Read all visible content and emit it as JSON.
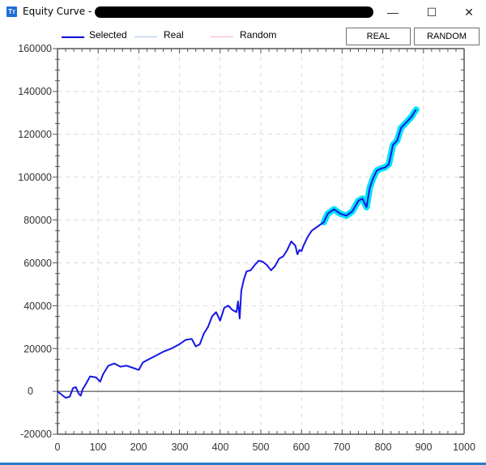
{
  "window": {
    "title": "Equity Curve - ",
    "title_redacted": true,
    "controls": {
      "minimize": "—",
      "maximize": "☐",
      "close": "✕"
    },
    "app_icon": "Tт"
  },
  "legend": [
    {
      "label": "Selected",
      "color": "#0000dd"
    },
    {
      "label": "Real",
      "color": "#a8c4f0"
    },
    {
      "label": "Random",
      "color": "#f4b6bd"
    }
  ],
  "buttons": {
    "real": "REAL",
    "random": "RANDOM"
  },
  "colors": {
    "selected": "#1515e8",
    "highlight": "#00e5f5",
    "grid": "#d9d9d9",
    "axis": "#555555",
    "zero_line": "#333333"
  },
  "chart_data": {
    "type": "line",
    "title": "Equity Curve",
    "xlabel": "",
    "ylabel": "",
    "xlim": [
      0,
      1000
    ],
    "ylim": [
      -20000,
      160000
    ],
    "x_ticks": [
      "0",
      "100",
      "200",
      "300",
      "400",
      "500",
      "600",
      "700",
      "800",
      "900",
      "1000"
    ],
    "y_ticks": [
      "160000",
      "140000",
      "120000",
      "100000",
      "80000",
      "60000",
      "40000",
      "20000",
      "0",
      "-20000"
    ],
    "grid": true,
    "legend_position": "top",
    "highlight_range": [
      650,
      882
    ],
    "series": [
      {
        "name": "Selected",
        "x": [
          0,
          10,
          20,
          30,
          38,
          45,
          52,
          57,
          62,
          70,
          80,
          95,
          105,
          112,
          125,
          140,
          155,
          170,
          185,
          200,
          210,
          225,
          240,
          260,
          280,
          300,
          315,
          330,
          340,
          350,
          360,
          370,
          380,
          390,
          400,
          410,
          420,
          430,
          440,
          444,
          448,
          452,
          458,
          465,
          475,
          485,
          495,
          505,
          515,
          525,
          535,
          545,
          555,
          565,
          575,
          585,
          590,
          595,
          600,
          605,
          615,
          625,
          640,
          655,
          665,
          680,
          695,
          710,
          725,
          740,
          750,
          760,
          768,
          775,
          785,
          795,
          805,
          815,
          825,
          835,
          845,
          855,
          865,
          872,
          878,
          882
        ],
        "y": [
          0,
          -1500,
          -3000,
          -2500,
          1500,
          2000,
          -1000,
          -2000,
          1000,
          3500,
          7000,
          6500,
          4500,
          8000,
          12000,
          13000,
          11500,
          12000,
          11000,
          10000,
          13500,
          15000,
          16500,
          18500,
          20000,
          22000,
          24000,
          24500,
          21000,
          22000,
          27000,
          30000,
          35000,
          37000,
          33000,
          39000,
          40000,
          38000,
          37000,
          42000,
          34000,
          47000,
          52000,
          56000,
          56500,
          59000,
          61000,
          60500,
          59000,
          56500,
          58500,
          62000,
          63000,
          66000,
          70000,
          68000,
          64000,
          66000,
          65500,
          68000,
          72000,
          75000,
          77000,
          79000,
          83000,
          85000,
          83000,
          82000,
          84000,
          89000,
          90000,
          86000,
          95000,
          99000,
          103000,
          104000,
          104500,
          106000,
          115000,
          117000,
          123000,
          125000,
          127000,
          128500,
          130500,
          131500
        ]
      },
      {
        "name": "Real",
        "x": [],
        "y": []
      },
      {
        "name": "Random",
        "x": [],
        "y": []
      }
    ]
  }
}
